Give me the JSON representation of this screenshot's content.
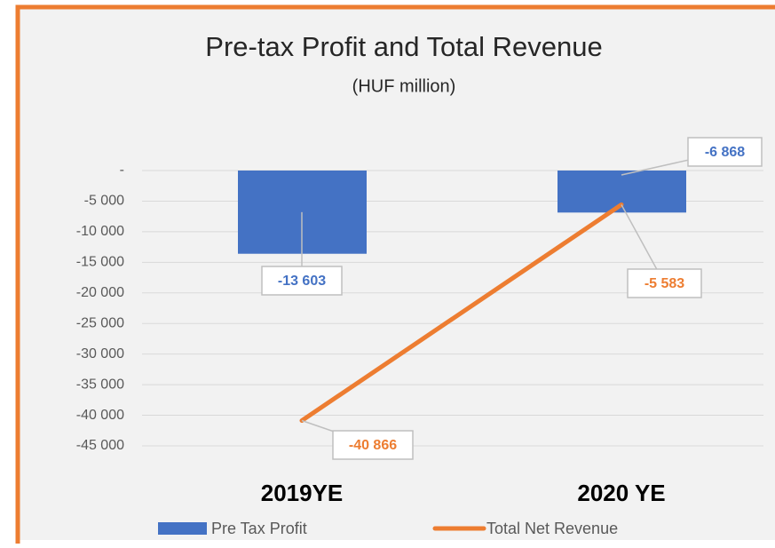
{
  "chart_data": {
    "type": "bar_line",
    "title": "Pre-tax Profit and Total Revenue",
    "subtitle": "(HUF million)",
    "categories": [
      "2019YE",
      "2020 YE"
    ],
    "series": [
      {
        "name": "Pre Tax Profit",
        "type": "bar",
        "color": "#4472c4",
        "values": [
          -13603,
          -6868
        ],
        "value_labels": [
          "-13 603",
          "-6 868"
        ]
      },
      {
        "name": "Total Net Revenue",
        "type": "line",
        "color": "#ed7d31",
        "values": [
          -40866,
          -5583
        ],
        "value_labels": [
          "-40 866",
          "-5 583"
        ]
      }
    ],
    "ylim": [
      -45000,
      0
    ],
    "yticks": [
      {
        "value": 0,
        "label": "-"
      },
      {
        "value": -5000,
        "label": "-5 000"
      },
      {
        "value": -10000,
        "label": "-10 000"
      },
      {
        "value": -15000,
        "label": "-15 000"
      },
      {
        "value": -20000,
        "label": "-20 000"
      },
      {
        "value": -25000,
        "label": "-25 000"
      },
      {
        "value": -30000,
        "label": "-30 000"
      },
      {
        "value": -35000,
        "label": "-35 000"
      },
      {
        "value": -40000,
        "label": "-40 000"
      },
      {
        "value": -45000,
        "label": "-45 000"
      }
    ],
    "grid": true,
    "legend": "bottom"
  }
}
